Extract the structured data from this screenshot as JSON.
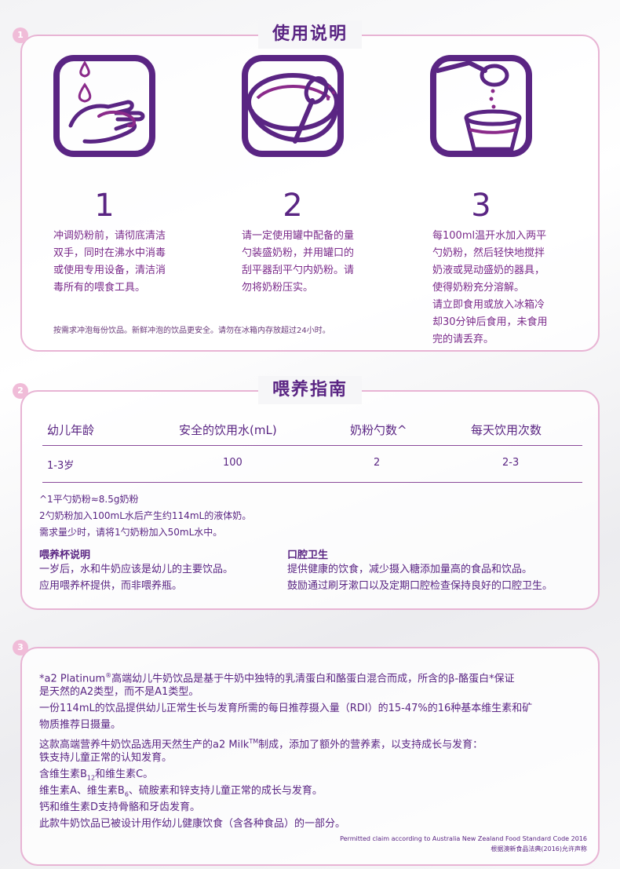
{
  "section1": {
    "number": "1",
    "title": "使用说明",
    "steps": [
      {
        "num": "1",
        "lines": [
          "冲调奶粉前，请彻底清洁",
          "双手，同时在沸水中消毒",
          "或使用专用设备，清洁消",
          "毒所有的喂食工具。"
        ]
      },
      {
        "num": "2",
        "lines": [
          "请一定使用罐中配备的量",
          "勺装盛奶粉，并用罐口的",
          "刮平器刮平勺内奶粉。请",
          "勿将奶粉压实。"
        ]
      },
      {
        "num": "3",
        "lines": [
          "每100ml温开水加入两平",
          "勺奶粉，然后轻快地搅拌",
          "奶液或晃动盛奶的器具，",
          "使得奶粉充分溶解。",
          "请立即食用或放入冰箱冷",
          "却30分钟后食用，未食用",
          "完的请丢弃。"
        ]
      }
    ],
    "note": "按需求冲泡每份饮品。新鲜冲泡的饮品更安全。请勿在冰箱内存放超过24小时。"
  },
  "section2": {
    "number": "2",
    "title": "喂养指南",
    "headers": [
      "幼儿年龄",
      "安全的饮用水(mL)",
      "奶粉勺数^",
      "每天饮用次数"
    ],
    "row": [
      "1-3岁",
      "100",
      "2",
      "2-3"
    ],
    "notes": [
      "^1平勺奶粉≈8.5g奶粉",
      "2勺奶粉加入100mL水后产生约114mL的液体奶。",
      "需求量少时，请将1勺奶粉加入50mL水中。"
    ],
    "cup_title": "喂养杯说明",
    "cup_lines": [
      "一岁后，水和牛奶应该是幼儿的主要饮品。",
      "应用喂养杯提供，而非喂养瓶。"
    ],
    "oral_title": "口腔卫生",
    "oral_lines": [
      "提供健康的饮食，减少摄入糖添加量高的食品和饮品。",
      "鼓励通过刷牙漱口以及定期口腔检查保持良好的口腔卫生。"
    ]
  },
  "section3": {
    "number": "3",
    "l1a": "*a2 Platinum",
    "l1sup": "®",
    "l1b": "高端幼儿牛奶饮品是基于牛奶中独特的乳清蛋白和酪蛋白混合而成，所含的β-酪蛋白*保证",
    "l2": "是天然的A2类型，而不是A1类型。",
    "l3": "一份114mL的饮品提供幼儿正常生长与发育所需的每日推荐摄入量（RDI）的15-47%的16种基本维生素和矿",
    "l4": "物质推荐日摄量。",
    "l5a": "这款高端营养牛奶饮品选用天然生产的a2 Milk",
    "l5sup": "TM",
    "l5b": "制成，添加了额外的营养素，以支持成长与发育：",
    "l6": "铁支持儿童正常的认知发育。",
    "l7a": "含维生素B",
    "l7sub": "12",
    "l7b": "和维生素C。",
    "l8a": "维生素A、维生素B",
    "l8sub": "6",
    "l8b": "、硫胺素和锌支持儿童正常的成长与发育。",
    "l9": "钙和维生素D支持骨骼和牙齿发育。",
    "l10": "此款牛奶饮品已被设计用作幼儿健康饮食（含各种食品）的一部分。",
    "footer_en": "Permitted claim according to Australia New Zealand Food Standard Code 2016",
    "footer_cn": "根据澳新食品法典(2016)允许声称"
  },
  "colors": {
    "accent": "#5a2583",
    "border": "#e8b4d4",
    "badge": "#f0bcd8"
  }
}
